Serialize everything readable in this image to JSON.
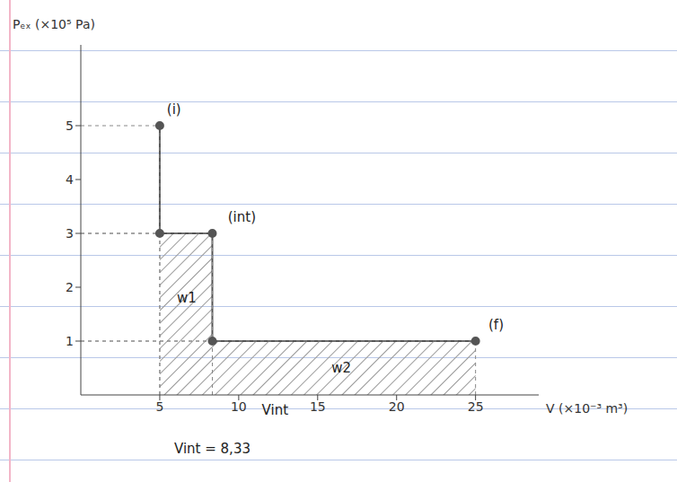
{
  "chart_data": {
    "type": "area",
    "x_label": "V (×10⁻³ m³)",
    "y_label": "Pₑₓ (×10⁵ Pa)",
    "x": [
      5,
      5,
      8.33,
      8.33,
      25
    ],
    "values": [
      5,
      3,
      3,
      1,
      1
    ],
    "color": "#555555",
    "marker": "circle",
    "xlim": [
      0,
      29
    ],
    "ylim": [
      0,
      6.5
    ],
    "xticks": [
      5,
      10,
      15,
      20,
      25
    ],
    "yticks": [
      1,
      2,
      3,
      4,
      5
    ],
    "annotations": [
      {
        "text": "(i)",
        "x": 5.9,
        "y": 5.3
      },
      {
        "text": "(int)",
        "x": 10.2,
        "y": 3.3
      },
      {
        "text": "(f)",
        "x": 26.3,
        "y": 1.3
      },
      {
        "text": "w1",
        "x": 6.7,
        "y": 1.8
      },
      {
        "text": "w2",
        "x": 16.5,
        "y": 0.5
      },
      {
        "text": "Vint",
        "x": 12.3,
        "y": -0.27
      },
      {
        "text": "Vint = 8,33",
        "x": 8.33,
        "y": -1
      }
    ]
  }
}
